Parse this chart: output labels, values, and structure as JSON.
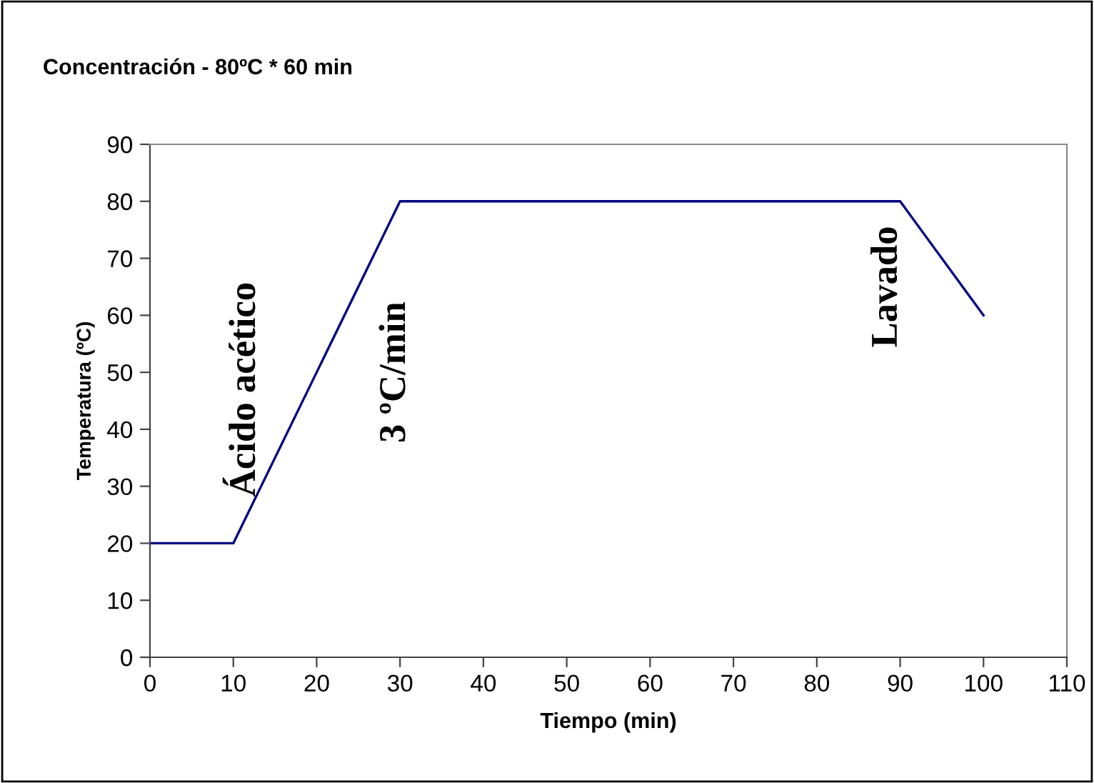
{
  "chart_data": {
    "type": "line",
    "title": "Concentración - 80ºC * 60 min",
    "xlabel": "Tiempo (min)",
    "ylabel": "Temperatura (ºC)",
    "x": [
      0,
      10,
      20,
      30,
      40,
      50,
      60,
      70,
      80,
      90,
      100
    ],
    "series": [
      {
        "color": "#000080",
        "values": [
          20,
          20,
          50,
          80,
          80,
          80,
          80,
          80,
          80,
          80,
          60
        ]
      }
    ],
    "xlim": [
      0,
      110
    ],
    "xticks": [
      0,
      10,
      20,
      30,
      40,
      50,
      60,
      70,
      80,
      90,
      100,
      110
    ],
    "ylim": [
      0,
      90
    ],
    "yticks": [
      0,
      10,
      20,
      30,
      40,
      50,
      60,
      70,
      80,
      90
    ],
    "grid": false,
    "legend": false,
    "line_style": "solid",
    "annotations": [
      "Ácido acético",
      "3 ºC/min",
      "Lavado"
    ]
  }
}
